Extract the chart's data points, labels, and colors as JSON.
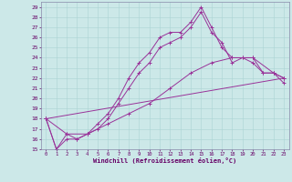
{
  "xlabel": "Windchill (Refroidissement éolien,°C)",
  "background_color": "#cce8e8",
  "line_color": "#993399",
  "xlim": [
    -0.5,
    23.5
  ],
  "ylim": [
    15,
    29.5
  ],
  "xticks": [
    0,
    1,
    2,
    3,
    4,
    5,
    6,
    7,
    8,
    9,
    10,
    11,
    12,
    13,
    14,
    15,
    16,
    17,
    18,
    19,
    20,
    21,
    22,
    23
  ],
  "yticks": [
    15,
    16,
    17,
    18,
    19,
    20,
    21,
    22,
    23,
    24,
    25,
    26,
    27,
    28,
    29
  ],
  "series": [
    {
      "x": [
        0,
        1,
        2,
        3,
        4,
        5,
        6,
        7,
        8,
        9,
        10,
        11,
        12,
        13,
        14,
        15,
        16,
        17,
        18,
        19,
        20,
        21,
        22,
        23
      ],
      "y": [
        18,
        15,
        16.5,
        16,
        16.5,
        17.5,
        18.5,
        20,
        22,
        23.5,
        24.5,
        26,
        26.5,
        26.5,
        27.5,
        29,
        27,
        25,
        24,
        24,
        24,
        22.5,
        22.5,
        22
      ]
    },
    {
      "x": [
        0,
        1,
        2,
        3,
        4,
        5,
        6,
        7,
        8,
        9,
        10,
        11,
        12,
        13,
        14,
        15,
        16,
        17,
        18,
        19,
        20,
        21,
        22,
        23
      ],
      "y": [
        18,
        15,
        16,
        16,
        16.5,
        17,
        18,
        19.5,
        21,
        22.5,
        23.5,
        25,
        25.5,
        26,
        27,
        28.5,
        26.5,
        25.5,
        23.5,
        24,
        23.5,
        22.5,
        22.5,
        21.5
      ]
    },
    {
      "x": [
        0,
        2,
        4,
        6,
        8,
        10,
        12,
        14,
        16,
        18,
        20,
        22,
        23
      ],
      "y": [
        18,
        16.5,
        16.5,
        17.5,
        18.5,
        19.5,
        21,
        22.5,
        23.5,
        24,
        24,
        22.5,
        22
      ]
    },
    {
      "x": [
        0,
        23
      ],
      "y": [
        18,
        22
      ]
    }
  ]
}
